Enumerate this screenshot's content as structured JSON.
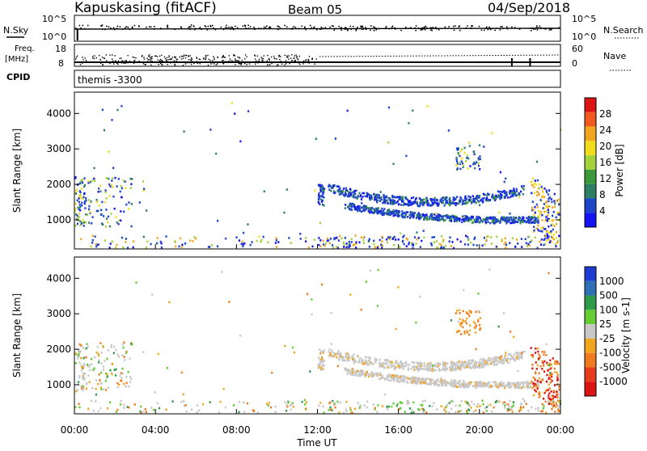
{
  "header": {
    "station": "Kapuskasing (fitACF)",
    "beam": "Beam 05",
    "date": "04/Sep/2018"
  },
  "top_panel": {
    "left_label": "N.Sky",
    "right_label": "N.Search",
    "y_ticks_left": [
      "10^5",
      "10^0"
    ],
    "y_ticks_right": [
      "10^5",
      "10^0"
    ]
  },
  "freq_panel": {
    "left_label_1": "Freq.",
    "left_label_2": "[MHz]",
    "right_label": "Nave",
    "y_ticks_left": [
      "18",
      "8"
    ],
    "y_ticks_right": [
      "60",
      "0"
    ]
  },
  "cpid": {
    "label": "CPID",
    "value": "themis -3300"
  },
  "colors": {
    "power_scale": [
      "#1414f0",
      "#1e46c8",
      "#2f7f66",
      "#3c9a3c",
      "#a4d23a",
      "#f2dc1e",
      "#f2a51e",
      "#f05a1e",
      "#dc1414"
    ],
    "velocity_scale": [
      "#1e3cd2",
      "#2e6fb5",
      "#2e9a4a",
      "#66cc33",
      "#c8c8c8",
      "#f2a51e",
      "#f07a1e",
      "#e63c1e",
      "#dc1414"
    ]
  },
  "chart_data": [
    {
      "type": "heatmap",
      "title": "Power",
      "xlabel": "Time UT",
      "ylabel": "Slant Range [km]",
      "x_ticks": [
        "00:00",
        "04:00",
        "08:00",
        "12:00",
        "16:00",
        "20:00",
        "00:00"
      ],
      "y_ticks": [
        "1000",
        "2000",
        "3000",
        "4000"
      ],
      "ylim": [
        180,
        4600
      ],
      "xlim_hours": [
        0,
        24
      ],
      "colorbar": {
        "label": "Power [dB]",
        "ticks": [
          "4",
          "8",
          "12",
          "16",
          "20",
          "24",
          "28"
        ],
        "range": [
          0,
          30
        ]
      },
      "features": [
        {
          "name": "arc-upper",
          "t_start": 12.5,
          "t_end": 22.2,
          "range_start_km": 1900,
          "range_mid_km": 1500,
          "range_end_km": 1850
        },
        {
          "name": "arc-lower",
          "t_start": 13.3,
          "t_end": 22.9,
          "range_start_km": 1400,
          "range_mid_km": 1050,
          "range_end_km": 1000
        },
        {
          "name": "early-echoes",
          "t_start": 0.0,
          "t_end": 2.8,
          "range_start_km": 800,
          "range_end_km": 2200
        }
      ]
    },
    {
      "type": "heatmap",
      "title": "Velocity",
      "xlabel": "Time UT",
      "ylabel": "Slant Range [km]",
      "x_ticks": [
        "00:00",
        "04:00",
        "08:00",
        "12:00",
        "16:00",
        "20:00",
        "00:00"
      ],
      "y_ticks": [
        "1000",
        "2000",
        "3000",
        "4000"
      ],
      "ylim": [
        180,
        4600
      ],
      "xlim_hours": [
        0,
        24
      ],
      "colorbar": {
        "label": "Velocity [m s-1]",
        "ticks": [
          "1000",
          "500",
          "100",
          "25",
          "-25",
          "-100",
          "-500",
          "-1000"
        ]
      },
      "features": [
        {
          "name": "ground-scatter-arc",
          "t_start": 12.5,
          "t_end": 22.2,
          "velocity_ms": 0
        },
        {
          "name": "receding-flow",
          "t_start": 22.5,
          "t_end": 24.0,
          "velocity_ms": -500
        }
      ]
    }
  ]
}
